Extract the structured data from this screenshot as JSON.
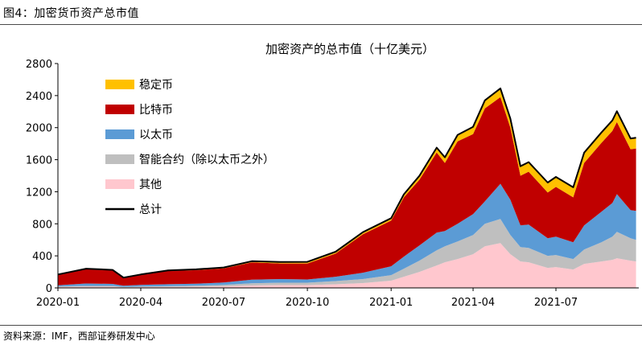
{
  "figure_title": "图4：加密货币资产总市值",
  "source": "资料来源：IMF，西部证券研发中心",
  "colors": {
    "stablecoin": "#FFC000",
    "bitcoin": "#C00000",
    "ethereum": "#5B9BD5",
    "smart_contract": "#BFBFBF",
    "other": "#FFC7CE",
    "total": "#000000"
  },
  "chart_data": {
    "type": "area",
    "title": "加密资产的总市值（十亿美元）",
    "xlabel": "",
    "ylabel": "",
    "ylim": [
      0,
      2800
    ],
    "yticks": [
      0,
      400,
      800,
      1200,
      1600,
      2000,
      2400,
      2800
    ],
    "xticks": [
      "2020-01",
      "2020-04",
      "2020-07",
      "2020-10",
      "2021-01",
      "2021-04",
      "2021-07"
    ],
    "grid": false,
    "legend_position": "top-left",
    "x": [
      "2020-01-01",
      "2020-02-01",
      "2020-03-01",
      "2020-03-13",
      "2020-04-01",
      "2020-05-01",
      "2020-06-01",
      "2020-07-01",
      "2020-08-01",
      "2020-09-01",
      "2020-10-01",
      "2020-11-01",
      "2020-12-01",
      "2021-01-01",
      "2021-01-15",
      "2021-02-01",
      "2021-02-20",
      "2021-03-01",
      "2021-03-15",
      "2021-04-01",
      "2021-04-14",
      "2021-05-01",
      "2021-05-12",
      "2021-05-23",
      "2021-06-01",
      "2021-06-22",
      "2021-07-01",
      "2021-07-20",
      "2021-08-01",
      "2021-08-20",
      "2021-09-01",
      "2021-09-06",
      "2021-09-21",
      "2021-09-27"
    ],
    "series": [
      {
        "name": "其他",
        "key": "other",
        "values": [
          10,
          15,
          15,
          8,
          10,
          12,
          15,
          20,
          30,
          35,
          35,
          45,
          60,
          90,
          140,
          200,
          280,
          320,
          360,
          420,
          520,
          560,
          420,
          330,
          320,
          250,
          260,
          230,
          300,
          330,
          350,
          370,
          340,
          330
        ]
      },
      {
        "name": "智能合约（除以太币之外）",
        "key": "smart_contract",
        "values": [
          8,
          10,
          10,
          5,
          7,
          9,
          12,
          18,
          28,
          30,
          30,
          40,
          50,
          70,
          100,
          140,
          190,
          200,
          220,
          240,
          280,
          300,
          240,
          180,
          180,
          150,
          150,
          130,
          180,
          240,
          290,
          330,
          280,
          270
        ]
      },
      {
        "name": "以太币",
        "key": "ethereum",
        "values": [
          15,
          30,
          25,
          15,
          20,
          25,
          25,
          30,
          45,
          45,
          40,
          55,
          80,
          110,
          150,
          190,
          220,
          190,
          220,
          260,
          280,
          440,
          440,
          270,
          290,
          220,
          230,
          210,
          300,
          380,
          420,
          470,
          350,
          360
        ]
      },
      {
        "name": "比特币",
        "key": "bitcoin",
        "values": [
          130,
          180,
          170,
          95,
          125,
          165,
          170,
          175,
          215,
          195,
          200,
          290,
          480,
          570,
          740,
          820,
          1000,
          850,
          1030,
          1000,
          1160,
          1080,
          900,
          620,
          660,
          570,
          620,
          560,
          780,
          860,
          900,
          900,
          760,
          780
        ]
      },
      {
        "name": "稳定币",
        "key": "stablecoin",
        "values": [
          5,
          5,
          5,
          5,
          6,
          8,
          10,
          12,
          15,
          18,
          20,
          22,
          25,
          30,
          38,
          48,
          60,
          70,
          80,
          90,
          100,
          110,
          112,
          118,
          120,
          125,
          125,
          125,
          128,
          130,
          130,
          135,
          135,
          135
        ]
      }
    ],
    "total_series": {
      "name": "总计",
      "key": "total",
      "values": [
        168,
        240,
        225,
        128,
        168,
        219,
        232,
        255,
        333,
        323,
        325,
        452,
        695,
        870,
        1168,
        1398,
        1750,
        1630,
        1910,
        2010,
        2340,
        2490,
        2112,
        1518,
        1570,
        1315,
        1385,
        1255,
        1688,
        1940,
        2090,
        2205,
        1865,
        1875
      ]
    },
    "legend_order": [
      "stablecoin",
      "bitcoin",
      "ethereum",
      "smart_contract",
      "other",
      "total"
    ]
  }
}
